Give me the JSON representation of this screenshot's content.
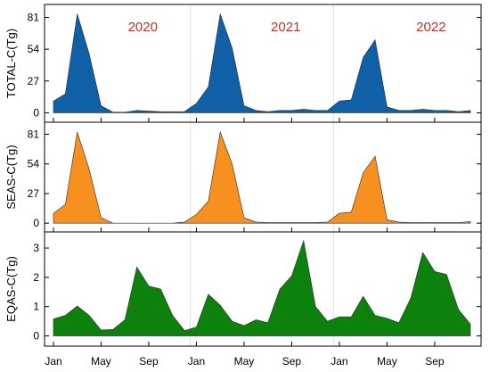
{
  "chart_data": [
    {
      "type": "area",
      "ylabel": "TOTAL-C(Tg)",
      "ylim": [
        -8,
        92
      ],
      "yticks": [
        0,
        27,
        54,
        81
      ],
      "color": "#1060a8",
      "series": [
        {
          "values": [
            10,
            16,
            84,
            50,
            6,
            0.5,
            0.5,
            2,
            1.5,
            1,
            1,
            1,
            8,
            22,
            84,
            55,
            6,
            2,
            1,
            2,
            2,
            3,
            2,
            2,
            10,
            11,
            47,
            62,
            5,
            2,
            2,
            3,
            2,
            2,
            1,
            2
          ]
        }
      ]
    },
    {
      "type": "area",
      "ylabel": "SEAS-C(Tg)",
      "ylim": [
        -8,
        92
      ],
      "yticks": [
        0,
        27,
        54,
        81
      ],
      "color": "#f7901e",
      "series": [
        {
          "values": [
            9,
            17,
            83,
            49,
            5,
            0,
            0,
            0,
            0,
            0,
            0,
            1,
            8,
            20,
            83,
            54,
            5,
            1,
            0.5,
            0.5,
            0.5,
            0.5,
            0.5,
            1,
            9,
            10,
            46,
            61,
            3,
            1,
            0.5,
            0.5,
            0.5,
            0.5,
            0.5,
            1.5
          ]
        }
      ]
    },
    {
      "type": "area",
      "ylabel": "EQAS-C(Tg)",
      "ylim": [
        -0.35,
        3.55
      ],
      "yticks": [
        0,
        1,
        2,
        3
      ],
      "color": "#0c820c",
      "series": [
        {
          "values": [
            0.58,
            0.7,
            1.02,
            0.7,
            0.2,
            0.22,
            0.55,
            2.35,
            1.7,
            1.6,
            0.7,
            0.18,
            0.3,
            1.42,
            1.05,
            0.5,
            0.35,
            0.55,
            0.45,
            1.6,
            2.05,
            3.25,
            1.0,
            0.5,
            0.65,
            0.65,
            1.35,
            0.7,
            0.6,
            0.45,
            1.3,
            2.85,
            2.2,
            2.1,
            0.9,
            0.4
          ]
        }
      ]
    }
  ],
  "x_axis": {
    "ticks": [
      {
        "label": "Jan",
        "month": 0
      },
      {
        "label": "May",
        "month": 4
      },
      {
        "label": "Sep",
        "month": 8
      },
      {
        "label": "Jan",
        "month": 12
      },
      {
        "label": "May",
        "month": 16
      },
      {
        "label": "Sep",
        "month": 20
      },
      {
        "label": "Jan",
        "month": 24
      },
      {
        "label": "May",
        "month": 28
      },
      {
        "label": "Sep",
        "month": 32
      }
    ]
  },
  "years": [
    {
      "label": "2020",
      "month": 7.5
    },
    {
      "label": "2021",
      "month": 19.5
    },
    {
      "label": "2022",
      "month": 31.7
    }
  ],
  "year_separators": [
    11.5,
    23.5
  ],
  "year_color": "#c0302a"
}
